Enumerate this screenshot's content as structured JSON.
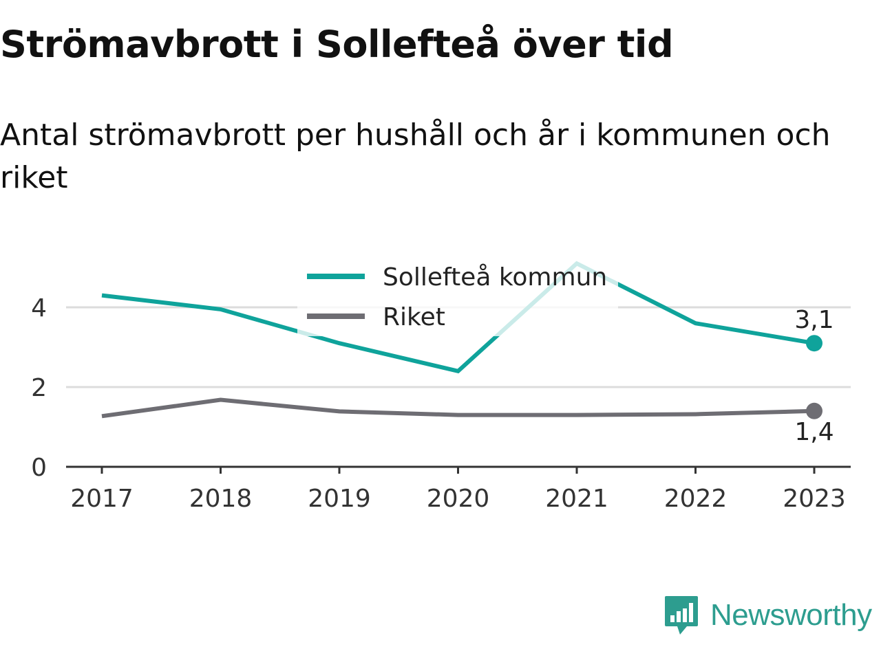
{
  "title": "Strömavbrott i Sollefteå över tid",
  "subtitle": "Antal strömavbrott per hushåll och år i kommunen och riket",
  "brand": {
    "name": "Newsworthy",
    "icon": "newsworthy-logo-icon",
    "color": "#2d9d8f"
  },
  "chart_data": {
    "type": "line",
    "x": [
      "2017",
      "2018",
      "2019",
      "2020",
      "2021",
      "2022",
      "2023"
    ],
    "ylim": [
      0,
      5
    ],
    "yticks": [
      "0",
      "2",
      "4"
    ],
    "grid": true,
    "legend_position": "top-center",
    "series": [
      {
        "name": "Sollefteå kommun",
        "color": "#0fa39b",
        "values": [
          4.3,
          3.95,
          3.1,
          2.4,
          5.1,
          3.6,
          3.1
        ],
        "end_label": "3,1"
      },
      {
        "name": "Riket",
        "color": "#6e6d73",
        "values": [
          1.27,
          1.68,
          1.39,
          1.3,
          1.3,
          1.32,
          1.4
        ],
        "end_label": "1,4"
      }
    ]
  }
}
